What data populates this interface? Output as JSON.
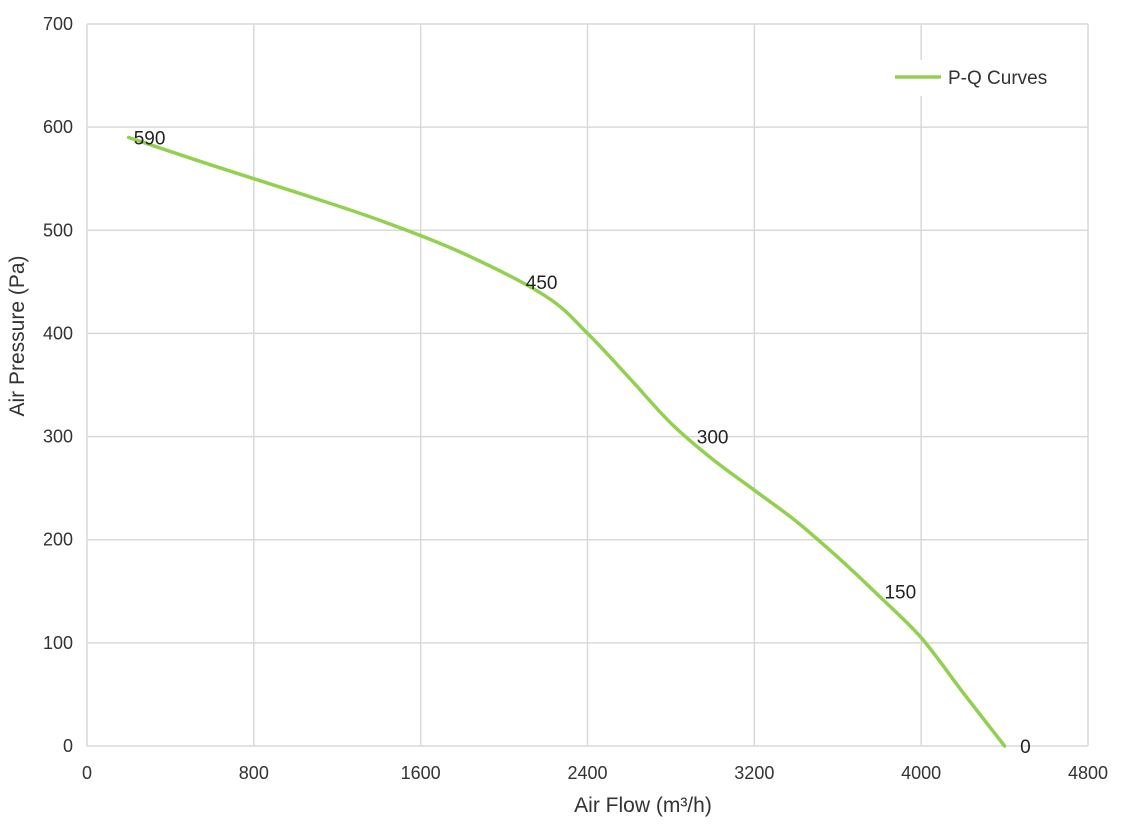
{
  "chart_data": {
    "type": "line",
    "title": "",
    "xlabel": "Air Flow  (m³/h)",
    "ylabel": "Air Pressure  (Pa)",
    "xlim": [
      0,
      4800
    ],
    "ylim": [
      0,
      700
    ],
    "xticks": [
      0,
      800,
      1600,
      2400,
      3200,
      4000,
      4800
    ],
    "yticks": [
      0,
      100,
      200,
      300,
      400,
      500,
      600,
      700
    ],
    "grid": true,
    "legend_position": "top-right",
    "series": [
      {
        "name": "P-Q Curves",
        "color": "#92d050",
        "x": [
          200,
          600,
          1000,
          1400,
          1800,
          2200,
          2400,
          2600,
          2800,
          3000,
          3200,
          3400,
          3600,
          3800,
          4000,
          4200,
          4400
        ],
        "y": [
          590,
          563,
          537,
          510,
          478,
          436,
          400,
          357,
          313,
          278,
          248,
          218,
          183,
          145,
          105,
          52,
          0
        ]
      }
    ],
    "data_labels": [
      {
        "text": "590",
        "x": 300,
        "y": 590
      },
      {
        "text": "450",
        "x": 2180,
        "y": 450
      },
      {
        "text": "300",
        "x": 3000,
        "y": 300
      },
      {
        "text": "150",
        "x": 3900,
        "y": 150
      },
      {
        "text": "0",
        "x": 4500,
        "y": 0
      }
    ]
  }
}
